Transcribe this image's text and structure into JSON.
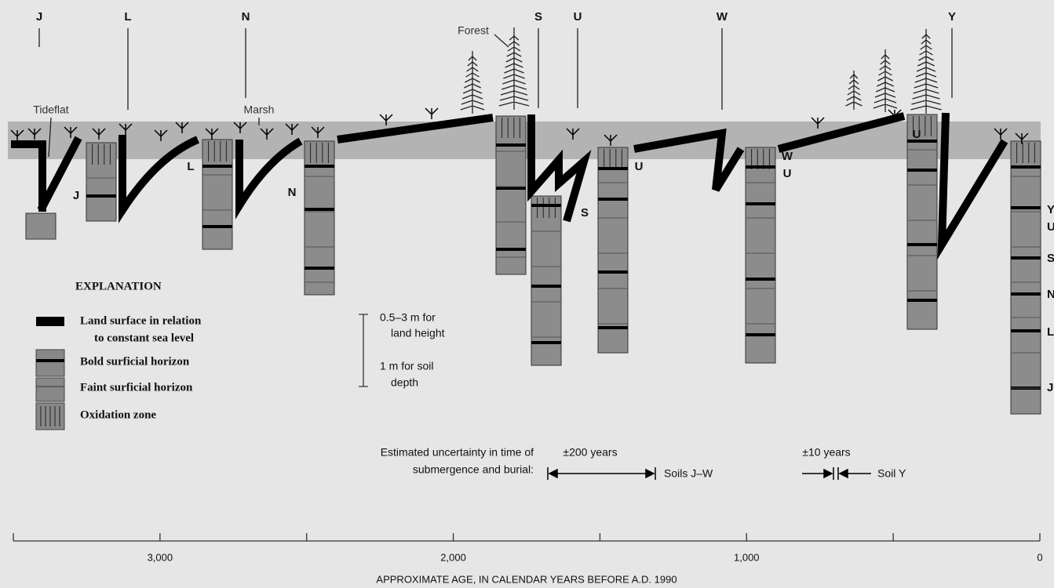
{
  "column_labels": [
    "J",
    "L",
    "N",
    "S",
    "U",
    "W",
    "Y"
  ],
  "environment_labels": {
    "tideflat": "Tideflat",
    "marsh": "Marsh",
    "forest": "Forest"
  },
  "horizon_labels": [
    "J",
    "L",
    "N",
    "S",
    "U",
    "W",
    "U",
    "U"
  ],
  "right_column_labels": [
    "Y",
    "U",
    "S",
    "N",
    "L",
    "J"
  ],
  "explanation": {
    "title": "EXPLANATION",
    "items": [
      [
        "Land surface in relation",
        "to constant sea level"
      ],
      [
        "Bold surficial horizon"
      ],
      [
        "Faint surficial horizon"
      ],
      [
        "Oxidation zone"
      ]
    ]
  },
  "scale": {
    "land_height": [
      "0.5–3 m for",
      "land height"
    ],
    "soil_depth": [
      "1 m for soil",
      "depth"
    ]
  },
  "uncertainty": {
    "caption": [
      "Estimated uncertainty in time of",
      "submergence and burial:"
    ],
    "range_200": "±200 years",
    "soils_jw": "Soils J–W",
    "range_10": "±10 years",
    "soil_y": "Soil Y"
  },
  "axis": {
    "title": "APPROXIMATE AGE, IN CALENDAR YEARS BEFORE A.D. 1990",
    "xlim": [
      0,
      3500
    ],
    "ticks": [
      {
        "value": 3000,
        "label": "3,000"
      },
      {
        "value": 2000,
        "label": "2,000"
      },
      {
        "value": 1000,
        "label": "1,000"
      },
      0
    ],
    "minor_ticks": [
      3500,
      2500,
      1500,
      500
    ]
  }
}
